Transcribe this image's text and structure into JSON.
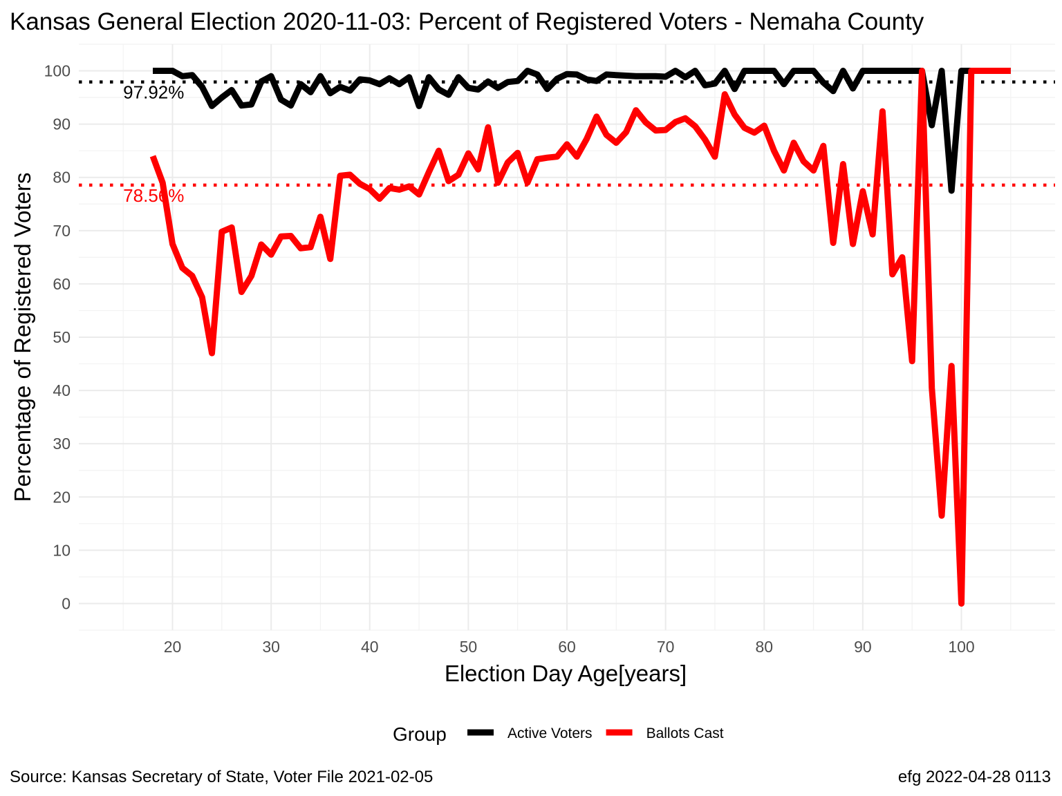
{
  "chart_data": {
    "type": "line",
    "title": "Kansas General Election 2020-11-03:  Percent of Registered Voters - Nemaha County",
    "xlabel": "Election Day Age[years]",
    "ylabel": "Percentage of Registered Voters",
    "xlim": [
      10.5,
      109.5
    ],
    "ylim": [
      -5,
      105
    ],
    "x_ticks": [
      20,
      30,
      40,
      50,
      60,
      70,
      80,
      90,
      100
    ],
    "y_ticks": [
      0,
      10,
      20,
      30,
      40,
      50,
      60,
      70,
      80,
      90,
      100
    ],
    "grid": true,
    "legend_position": "bottom",
    "legend_title": "Group",
    "caption_left": "Source:  Kansas Secretary of State, Voter File  2021-02-05",
    "caption_right": "efg 2022-04-28 0113",
    "reference_lines": [
      {
        "value": 97.92,
        "label": "97.92%",
        "color": "#000000"
      },
      {
        "value": 78.56,
        "label": "78.56%",
        "color": "#ff0000"
      }
    ],
    "series": [
      {
        "name": "Active Voters",
        "color": "#000000",
        "x": [
          18,
          19,
          20,
          21,
          22,
          23,
          24,
          25,
          26,
          27,
          28,
          29,
          30,
          31,
          32,
          33,
          34,
          35,
          36,
          37,
          38,
          39,
          40,
          41,
          42,
          43,
          44,
          45,
          46,
          47,
          48,
          49,
          50,
          51,
          52,
          53,
          54,
          55,
          56,
          57,
          58,
          59,
          60,
          61,
          62,
          63,
          64,
          65,
          66,
          67,
          68,
          69,
          70,
          71,
          72,
          73,
          74,
          75,
          76,
          77,
          78,
          79,
          80,
          81,
          82,
          83,
          84,
          85,
          86,
          87,
          88,
          89,
          90,
          91,
          92,
          93,
          94,
          95,
          96,
          97,
          98,
          99,
          100,
          101,
          102,
          103,
          104,
          105
        ],
        "values": [
          100,
          100,
          100,
          99,
          99.2,
          97,
          93.4,
          95,
          96.4,
          93.5,
          93.7,
          98,
          99,
          94.6,
          93.5,
          97.5,
          96,
          99,
          95.8,
          97,
          96.3,
          98.4,
          98.2,
          97.5,
          98.6,
          97.5,
          98.8,
          93.4,
          98.8,
          96.5,
          95.5,
          98.8,
          96.8,
          96.5,
          98,
          96.8,
          97.9,
          98.1,
          100,
          99.3,
          96.6,
          98.5,
          99.4,
          99.3,
          98.4,
          98.1,
          99.3,
          99.2,
          99.1,
          99,
          99,
          99,
          98.9,
          100,
          98.8,
          100,
          97.3,
          97.6,
          100,
          96.6,
          100,
          100,
          100,
          100,
          97.5,
          100,
          100,
          100,
          97.8,
          96.2,
          100,
          96.7,
          100,
          100,
          100,
          100,
          100,
          100,
          100,
          89.8,
          100,
          77.5,
          100,
          100,
          100,
          100,
          100,
          100
        ]
      },
      {
        "name": "Ballots Cast",
        "color": "#ff0000",
        "x": [
          18,
          19,
          20,
          21,
          22,
          23,
          24,
          25,
          26,
          27,
          28,
          29,
          30,
          31,
          32,
          33,
          34,
          35,
          36,
          37,
          38,
          39,
          40,
          41,
          42,
          43,
          44,
          45,
          46,
          47,
          48,
          49,
          50,
          51,
          52,
          53,
          54,
          55,
          56,
          57,
          58,
          59,
          60,
          61,
          62,
          63,
          64,
          65,
          66,
          67,
          68,
          69,
          70,
          71,
          72,
          73,
          74,
          75,
          76,
          77,
          78,
          79,
          80,
          81,
          82,
          83,
          84,
          85,
          86,
          87,
          88,
          89,
          90,
          91,
          92,
          93,
          94,
          95,
          96,
          97,
          98,
          99,
          100,
          101,
          102,
          103,
          104,
          105
        ],
        "values": [
          84,
          79,
          67.5,
          63,
          61.5,
          57.5,
          47,
          69.8,
          70.6,
          58.5,
          61.5,
          67.4,
          65.5,
          68.9,
          69,
          66.7,
          66.9,
          72.6,
          64.7,
          80.3,
          80.5,
          78.8,
          77.8,
          76,
          78,
          77.7,
          78.3,
          76.8,
          81,
          85,
          79.3,
          80.5,
          84.5,
          81.5,
          89.4,
          79,
          82.8,
          84.6,
          79,
          83.4,
          83.7,
          83.9,
          86.2,
          83.9,
          87.2,
          91.4,
          88,
          86.5,
          88.5,
          92.6,
          90.3,
          88.8,
          88.9,
          90.4,
          91.1,
          89.6,
          87.1,
          83.9,
          95.6,
          91.8,
          89.3,
          88.4,
          89.7,
          85,
          81.3,
          86.5,
          83,
          81.3,
          85.9,
          67.7,
          82.5,
          67.5,
          77.4,
          69.3,
          92.4,
          61.8,
          65,
          45.5,
          100,
          40.5,
          16.5,
          44.6,
          0,
          100,
          100,
          100,
          100,
          100
        ]
      }
    ]
  }
}
